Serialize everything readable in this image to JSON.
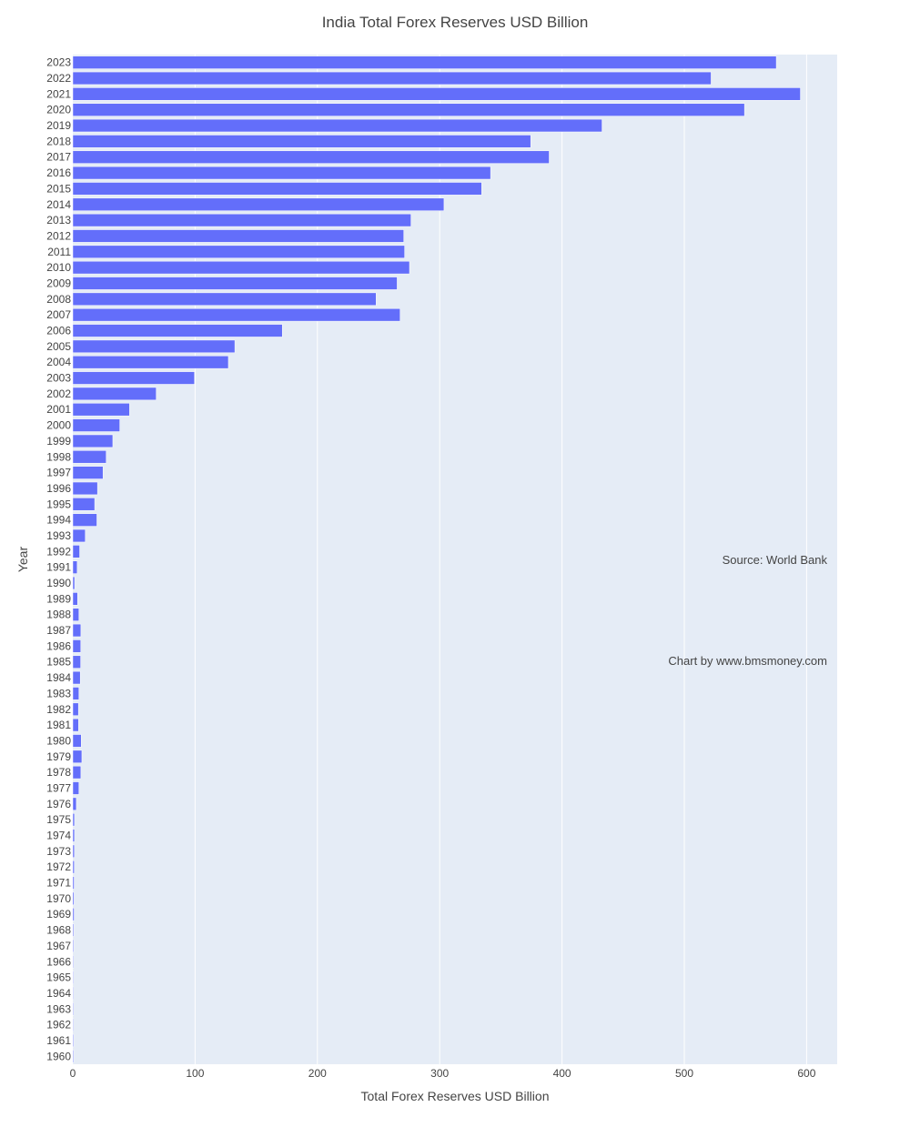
{
  "chart_data": {
    "type": "bar",
    "orientation": "horizontal",
    "title": "India Total Forex Reserves USD Billion",
    "xlabel": "Total Forex Reserves USD Billion",
    "ylabel": "Year",
    "xlim": [
      0,
      625
    ],
    "x_ticks": [
      0,
      100,
      200,
      300,
      400,
      500,
      600
    ],
    "grid": true,
    "bar_color": "#636efa",
    "plot_bg": "#e5ecf6",
    "annotations": [
      "Source: World Bank",
      "Chart by www.bmsmoney.com"
    ],
    "categories": [
      "1960",
      "1961",
      "1962",
      "1963",
      "1964",
      "1965",
      "1966",
      "1967",
      "1968",
      "1969",
      "1970",
      "1971",
      "1972",
      "1973",
      "1974",
      "1975",
      "1976",
      "1977",
      "1978",
      "1979",
      "1980",
      "1981",
      "1982",
      "1983",
      "1984",
      "1985",
      "1986",
      "1987",
      "1988",
      "1989",
      "1990",
      "1991",
      "1992",
      "1993",
      "1994",
      "1995",
      "1996",
      "1997",
      "1998",
      "1999",
      "2000",
      "2001",
      "2002",
      "2003",
      "2004",
      "2005",
      "2006",
      "2007",
      "2008",
      "2009",
      "2010",
      "2011",
      "2012",
      "2013",
      "2014",
      "2015",
      "2016",
      "2017",
      "2018",
      "2019",
      "2020",
      "2021",
      "2022",
      "2023"
    ],
    "values": [
      0.67,
      0.67,
      0.51,
      0.61,
      0.5,
      0.52,
      0.6,
      0.69,
      0.75,
      1.1,
      1.02,
      1.1,
      1.2,
      1.3,
      1.4,
      1.4,
      2.9,
      5.0,
      6.6,
      7.4,
      6.9,
      4.7,
      4.6,
      5.0,
      6.1,
      6.4,
      6.5,
      6.6,
      5.0,
      3.9,
      1.5,
      3.6,
      5.6,
      10.2,
      19.7,
      17.9,
      20.2,
      24.7,
      27.3,
      32.7,
      38.4,
      46.4,
      68.2,
      99.5,
      127.2,
      132.5,
      171.3,
      267.6,
      248.0,
      265.2,
      275.3,
      271.3,
      270.6,
      276.5,
      303.5,
      334.3,
      341.6,
      389.5,
      374.4,
      432.7,
      549.2,
      594.9,
      521.9,
      575.2
    ]
  }
}
